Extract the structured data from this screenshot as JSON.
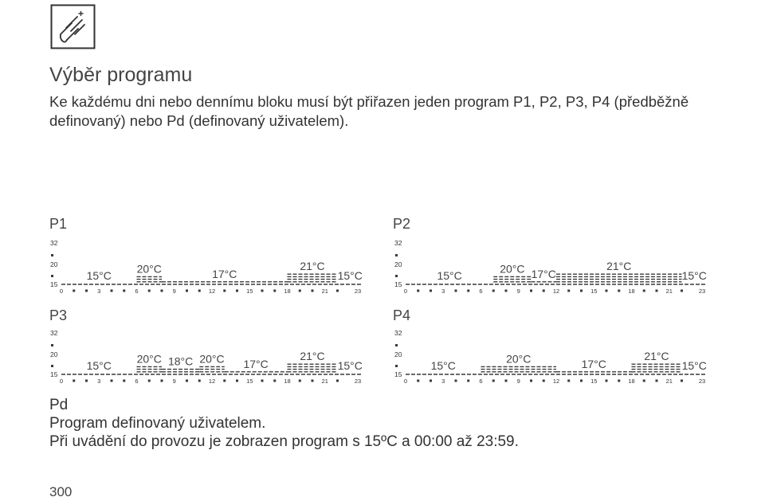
{
  "title": "Výběr programu",
  "intro": {
    "line1": "Ke každému dni nebo dennímu bloku musí být přiřazen jeden program P1, P2, P3, P4 (předběžně",
    "line2": "definovaný) nebo Pd (definovaný uživatelem)."
  },
  "y_axis_labels": [
    "32",
    "20",
    "15"
  ],
  "hour_ticks": [
    "0",
    "3",
    "6",
    "9",
    "12",
    "15",
    "18",
    "21",
    "23"
  ],
  "programs": [
    {
      "name": "P1",
      "segments": [
        {
          "from": 0,
          "to": 6,
          "temp": "15°C"
        },
        {
          "from": 6,
          "to": 8,
          "temp": "20°C"
        },
        {
          "from": 8,
          "to": 18,
          "temp": "17°C"
        },
        {
          "from": 18,
          "to": 22,
          "temp": "21°C"
        },
        {
          "from": 22,
          "to": 24,
          "temp": "15°C"
        }
      ]
    },
    {
      "name": "P2",
      "segments": [
        {
          "from": 0,
          "to": 7,
          "temp": "15°C"
        },
        {
          "from": 7,
          "to": 10,
          "temp": "20°C"
        },
        {
          "from": 10,
          "to": 12,
          "temp": "17°C"
        },
        {
          "from": 12,
          "to": 22,
          "temp": "21°C"
        },
        {
          "from": 22,
          "to": 24,
          "temp": "15°C"
        }
      ]
    },
    {
      "name": "P3",
      "segments": [
        {
          "from": 0,
          "to": 6,
          "temp": "15°C"
        },
        {
          "from": 6,
          "to": 8,
          "temp": "20°C"
        },
        {
          "from": 8,
          "to": 11,
          "temp": "18°C"
        },
        {
          "from": 11,
          "to": 13,
          "temp": "20°C"
        },
        {
          "from": 13,
          "to": 18,
          "temp": "17°C"
        },
        {
          "from": 18,
          "to": 22,
          "temp": "21°C"
        },
        {
          "from": 22,
          "to": 24,
          "temp": "15°C"
        }
      ]
    },
    {
      "name": "P4",
      "segments": [
        {
          "from": 0,
          "to": 6,
          "temp": "15°C"
        },
        {
          "from": 6,
          "to": 12,
          "temp": "20°C"
        },
        {
          "from": 12,
          "to": 18,
          "temp": "17°C"
        },
        {
          "from": 18,
          "to": 22,
          "temp": "21°C"
        },
        {
          "from": 22,
          "to": 24,
          "temp": "15°C"
        }
      ]
    }
  ],
  "pd": {
    "name": "Pd",
    "line1": "Program definovaný uživatelem.",
    "line2": "Při uvádění do provozu je zobrazen program s 15ºC a 00:00 až 23:59."
  },
  "page_number": "300",
  "colors": {
    "ink": "#3a3a3a"
  },
  "icon": "hand-touch-icon"
}
